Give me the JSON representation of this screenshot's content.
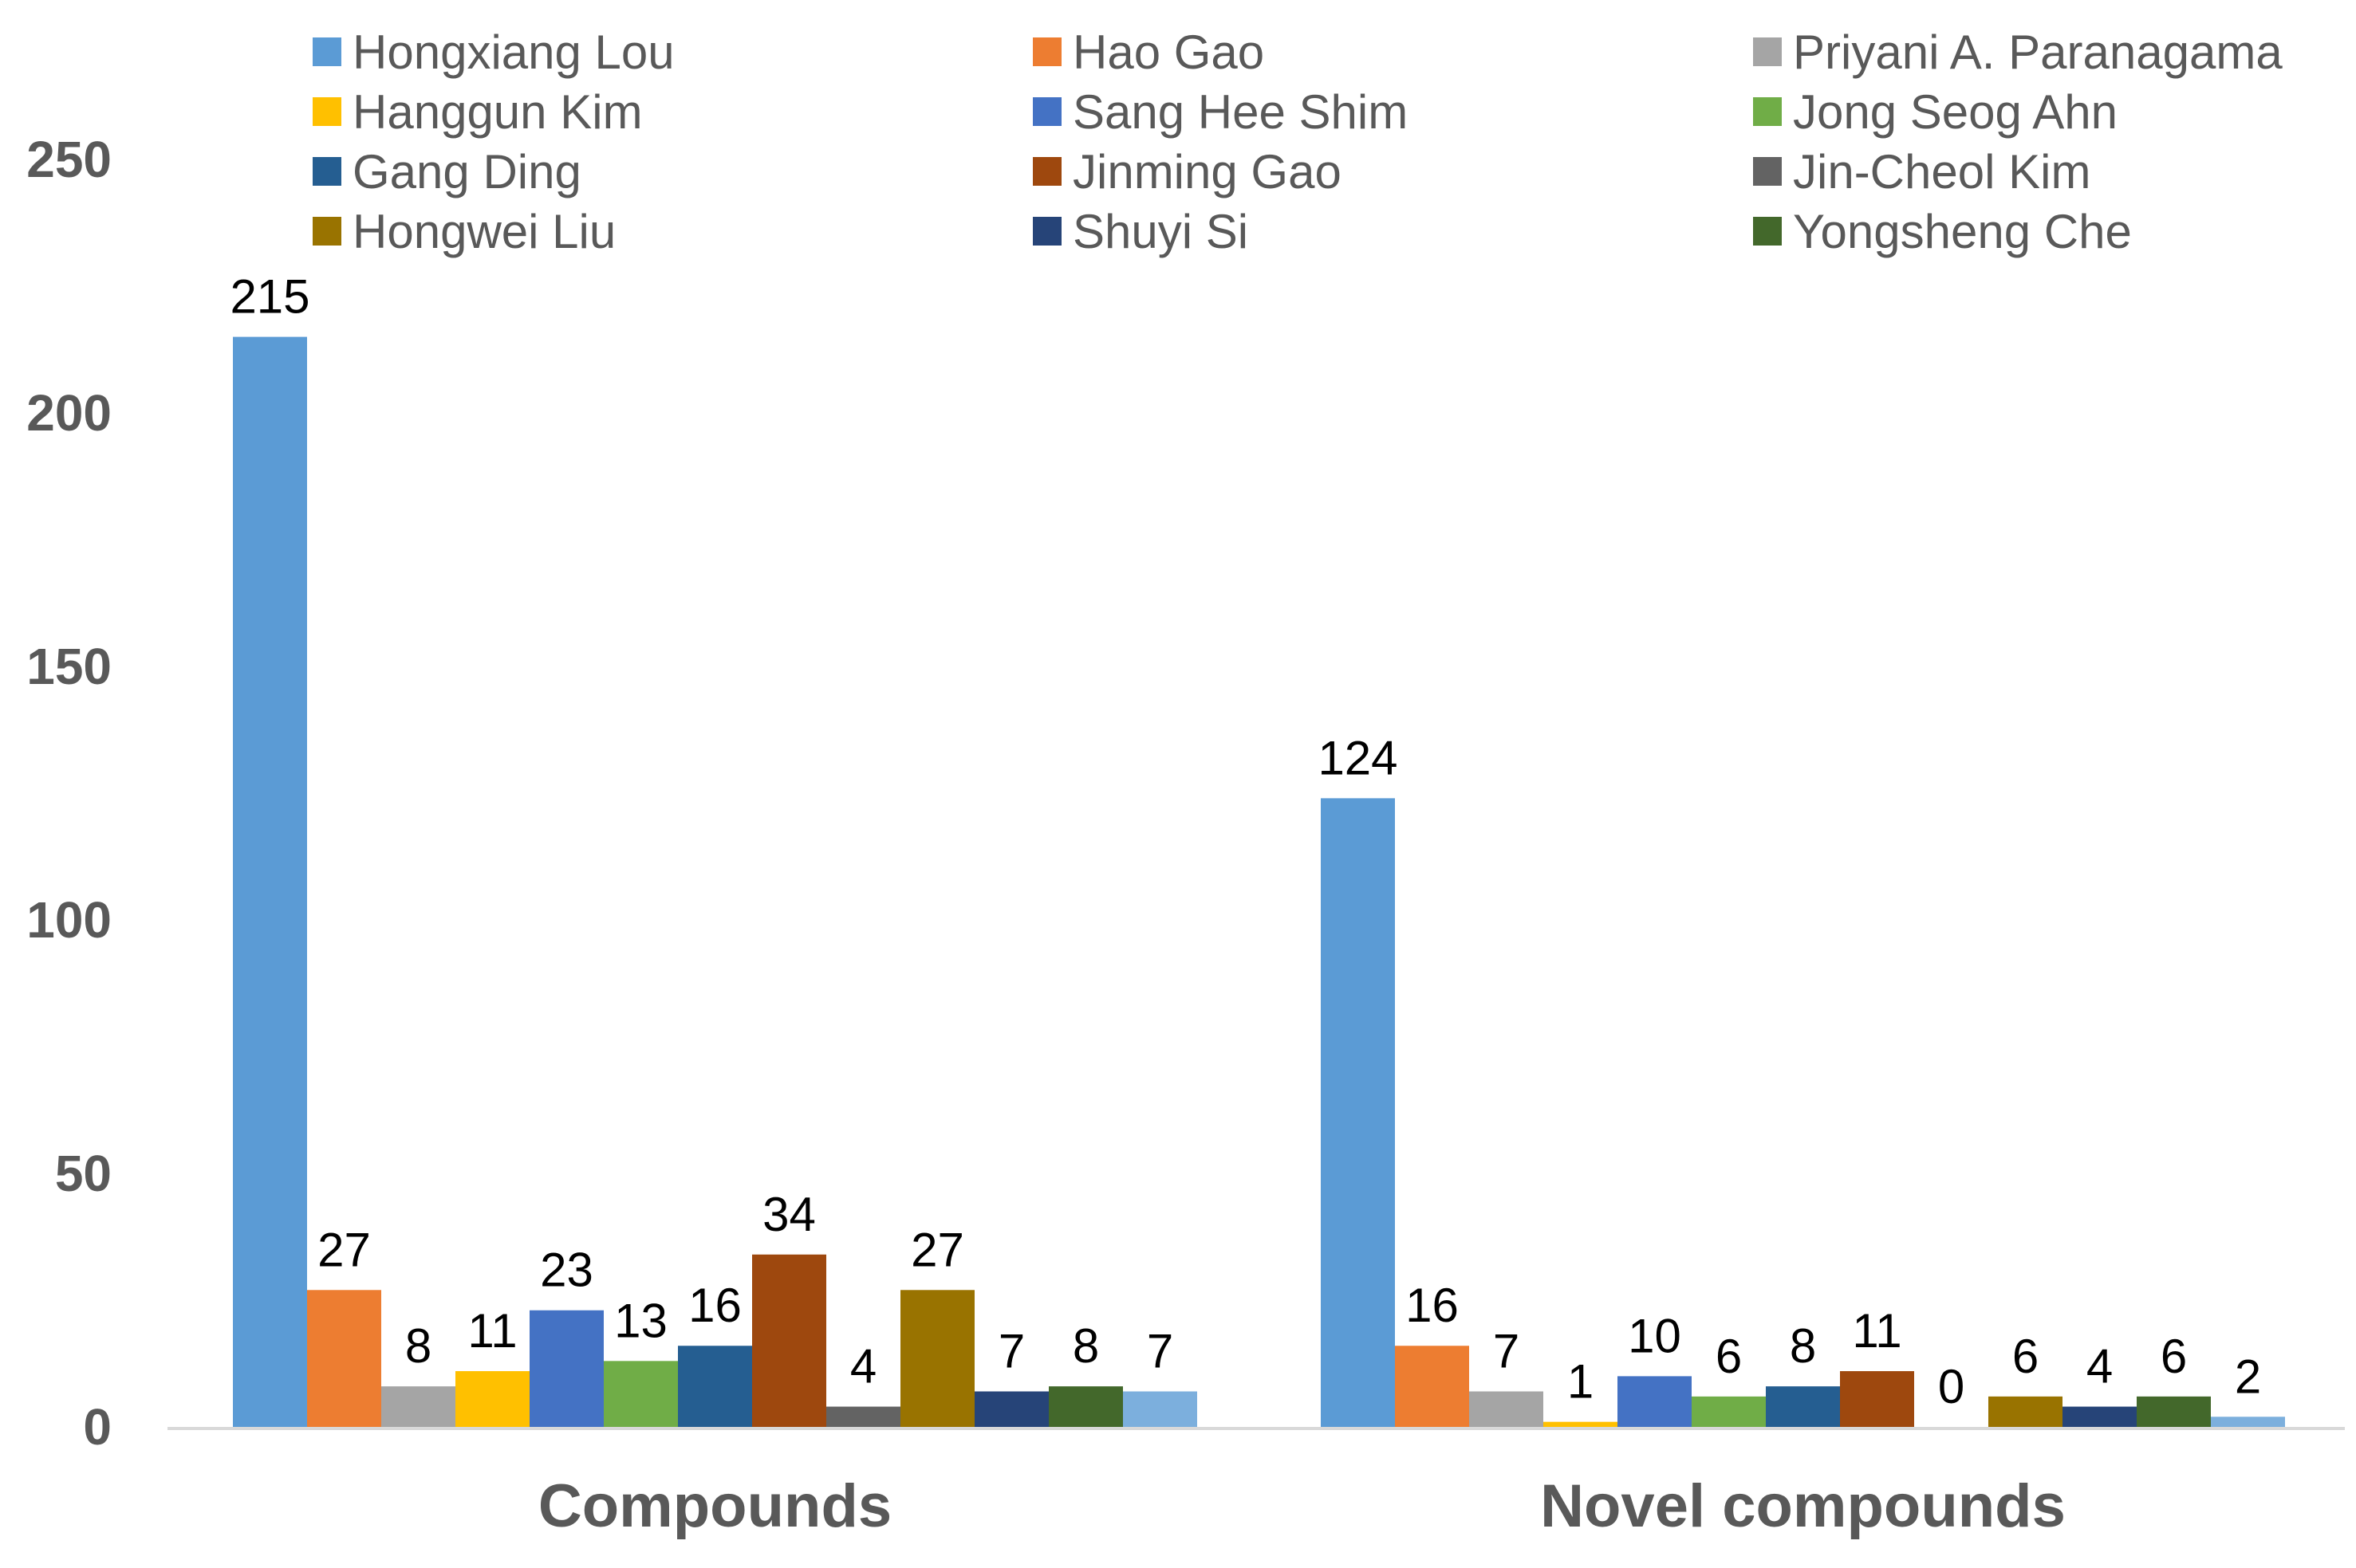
{
  "chart_data": {
    "type": "bar",
    "title": "",
    "xlabel": "",
    "ylabel": "",
    "categories": [
      "Compounds",
      "Novel compounds"
    ],
    "ylim": [
      0,
      250
    ],
    "yticks": [
      0,
      50,
      100,
      150,
      200,
      250
    ],
    "grid": false,
    "legend_position": "top",
    "data_labels": true,
    "series": [
      {
        "name": "Hongxiang Lou",
        "color": "#5B9BD5",
        "values": [
          215,
          124
        ]
      },
      {
        "name": "Hao Gao",
        "color": "#ED7D31",
        "values": [
          27,
          16
        ]
      },
      {
        "name": "Priyani A. Paranagama",
        "color": "#A5A5A5",
        "values": [
          8,
          7
        ]
      },
      {
        "name": "Hanggun Kim",
        "color": "#FFC000",
        "values": [
          11,
          1
        ]
      },
      {
        "name": "Sang Hee Shim",
        "color": "#4472C4",
        "values": [
          23,
          10
        ]
      },
      {
        "name": "Jong Seog Ahn",
        "color": "#70AD47",
        "values": [
          13,
          6
        ]
      },
      {
        "name": "Gang Ding",
        "color": "#255E91",
        "values": [
          16,
          8
        ]
      },
      {
        "name": "Jinming Gao",
        "color": "#9E480E",
        "values": [
          34,
          11
        ]
      },
      {
        "name": "Jin-Cheol Kim",
        "color": "#636363",
        "values": [
          4,
          0
        ]
      },
      {
        "name": "Hongwei Liu",
        "color": "#997300",
        "values": [
          27,
          6
        ]
      },
      {
        "name": "Shuyi Si",
        "color": "#264478",
        "values": [
          7,
          4
        ]
      },
      {
        "name": "Yongsheng Che",
        "color": "#43682B",
        "values": [
          8,
          6
        ]
      },
      {
        "name": "",
        "color": "#7CAFDD",
        "values": [
          7,
          2
        ]
      }
    ]
  }
}
